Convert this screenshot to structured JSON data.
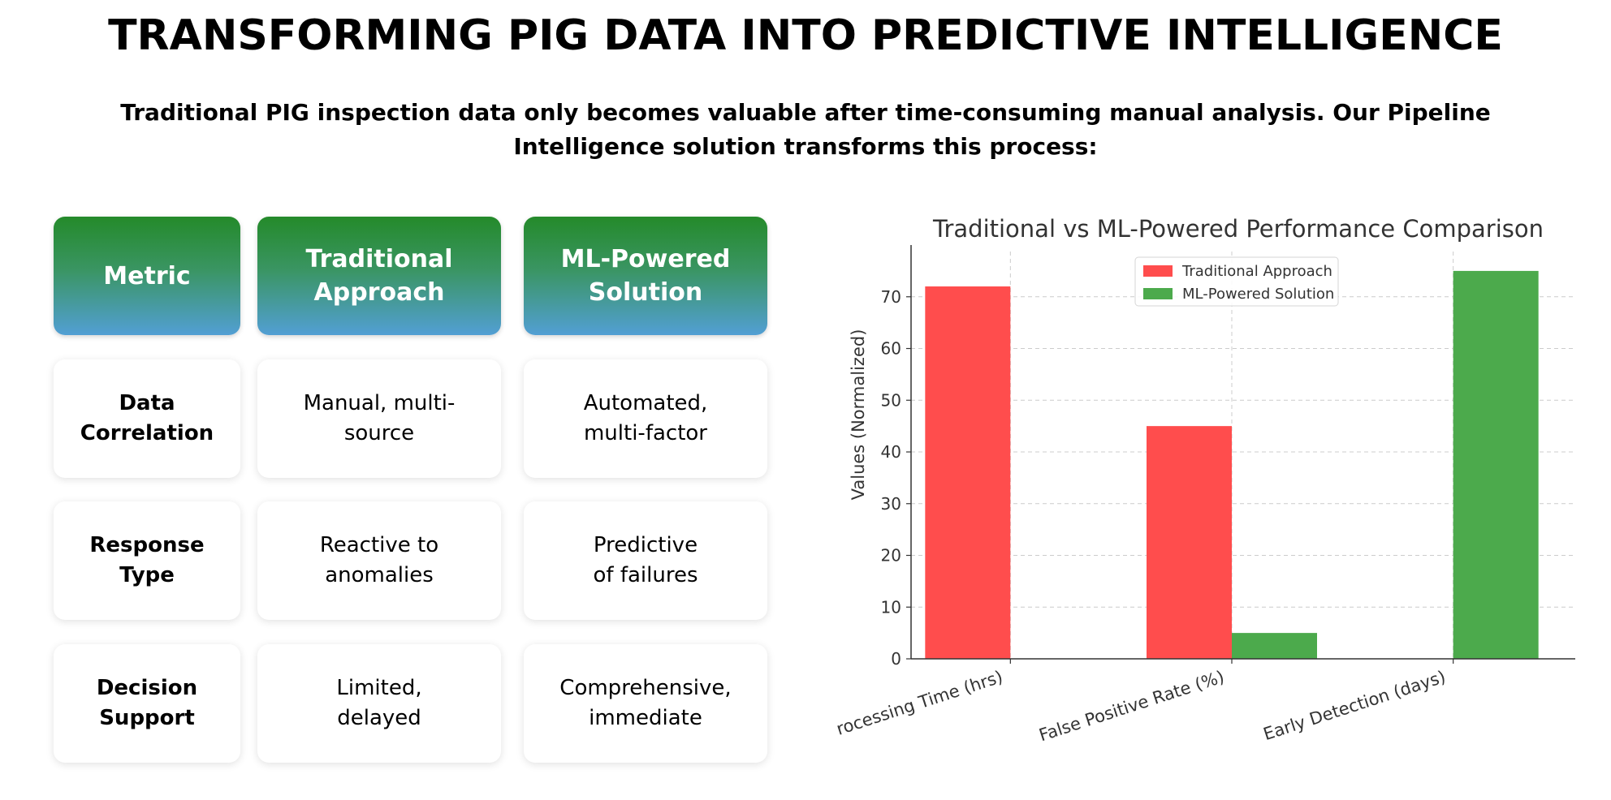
{
  "page": {
    "title": "TRANSFORMING PIG DATA INTO PREDICTIVE INTELLIGENCE",
    "subtitle": "Traditional PIG inspection data only becomes valuable after time-consuming manual analysis. Our Pipeline Intelligence solution transforms this process:"
  },
  "table": {
    "headers": [
      "Metric",
      "Traditional\nApproach",
      "ML-Powered\nSolution"
    ],
    "rows": [
      [
        "Data\nCorrelation",
        "Manual, multi-\nsource",
        "Automated,\nmulti-factor"
      ],
      [
        "Response\nType",
        "Reactive to\nanomalies",
        "Predictive\nof failures"
      ],
      [
        "Decision\nSupport",
        "Limited,\ndelayed",
        "Comprehensive,\nimmediate"
      ]
    ]
  },
  "chart_data": {
    "type": "bar",
    "title": "Traditional vs ML-Powered Performance Comparison",
    "xlabel": "",
    "ylabel": "Values (Normalized)",
    "categories": [
      "Processing Time (hrs)",
      "False Positive Rate (%)",
      "Early Detection (days)"
    ],
    "series": [
      {
        "name": "Traditional Approach",
        "values": [
          72,
          45,
          0
        ],
        "color": "#ff4d4d"
      },
      {
        "name": "ML-Powered Solution",
        "values": [
          0,
          5,
          75
        ],
        "color": "#4caa4c"
      }
    ],
    "yticks": [
      0,
      10,
      20,
      30,
      40,
      50,
      60,
      70
    ],
    "ylim": [
      0,
      78.75
    ],
    "grid": true,
    "legend": "top-center"
  }
}
